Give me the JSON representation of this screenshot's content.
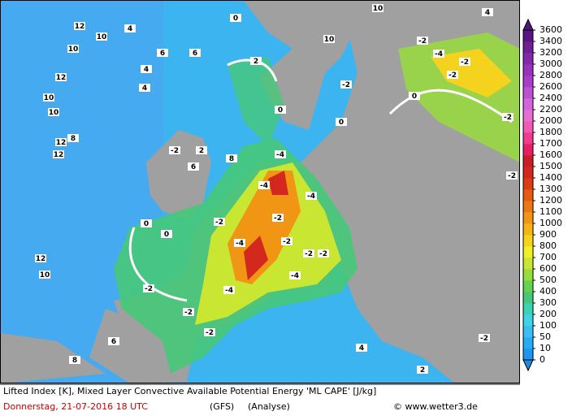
{
  "map": {
    "contour_labels": [
      "12",
      "10",
      "12",
      "10",
      "10",
      "12",
      "12",
      "8",
      "10",
      "4",
      "4",
      "6",
      "4",
      "6",
      "0",
      "2",
      "0",
      "-2",
      "2",
      "6",
      "8",
      "0",
      "0",
      "-2",
      "-2",
      "-4",
      "-4",
      "-4",
      "-4",
      "-2",
      "-2",
      "-2",
      "-2",
      "-4",
      "-4",
      "-2",
      "-2",
      "-2",
      "-2",
      "-4",
      "-2",
      "-2",
      "-2",
      "-2",
      "-2",
      "12",
      "10",
      "8",
      "6",
      "0",
      "10",
      "4",
      "10",
      "0",
      "2",
      "4"
    ]
  },
  "legend": {
    "levels": [
      0,
      10,
      50,
      100,
      200,
      300,
      400,
      500,
      600,
      700,
      800,
      900,
      1000,
      1100,
      1200,
      1300,
      1400,
      1500,
      1600,
      1700,
      1800,
      2000,
      2200,
      2400,
      2600,
      2800,
      3000,
      3200,
      3400,
      3600
    ],
    "colors": [
      "#1e96f0",
      "#28aaf5",
      "#3cbef5",
      "#40d2e6",
      "#3cd2b4",
      "#46c878",
      "#64d250",
      "#96dc3c",
      "#c8e632",
      "#f0f028",
      "#f5d21e",
      "#f5b414",
      "#f09614",
      "#eb7814",
      "#e65a14",
      "#dc3c14",
      "#d2281e",
      "#c81e28",
      "#e61e64",
      "#f03c8c",
      "#f05ab4",
      "#e66ed2",
      "#d264dc",
      "#be50d2",
      "#aa3cc8",
      "#9632be",
      "#8228aa",
      "#6e1e96",
      "#5a1482"
    ],
    "under_color": "#1e8cdc",
    "over_color": "#50147d"
  },
  "caption": {
    "title": "Lifted Index [K], Mixed Layer Convective Available Potential Energy 'ML CAPE' [J/kg]",
    "date": "Donnerstag, 21-07-2016  18 UTC",
    "model": "(GFS)",
    "run": "(Analyse)",
    "credit": "© www.wetter3.de"
  }
}
